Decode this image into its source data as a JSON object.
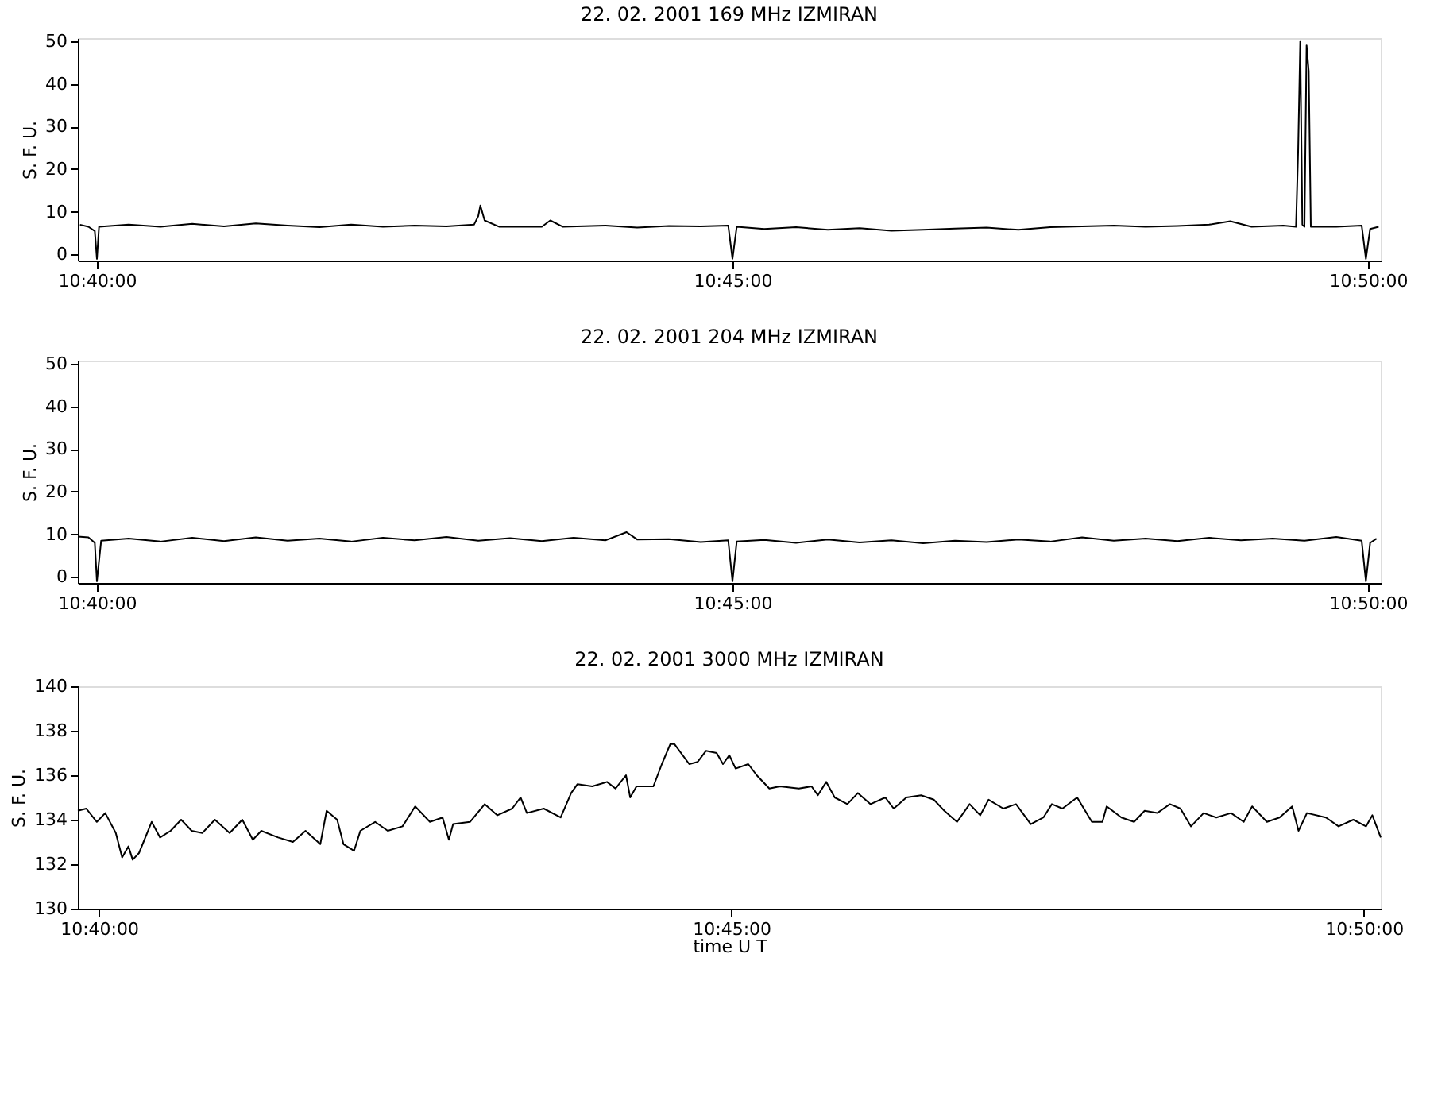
{
  "chart_data": [
    {
      "type": "line",
      "title": "22.  02.  2001    169  MHz    IZMIRAN",
      "ylabel": "S.  F.  U.",
      "grid": false,
      "xlim": [
        "2001-02-22T10:39:51",
        "2001-02-22T10:50:06"
      ],
      "xticks": [
        {
          "value": "2001-02-22T10:40:00",
          "label": "10:40:00"
        },
        {
          "value": "2001-02-22T10:45:00",
          "label": "10:45:00"
        },
        {
          "value": "2001-02-22T10:50:00",
          "label": "10:50:00"
        }
      ],
      "ylim": [
        -1.4,
        50.7
      ],
      "yticks": [
        0,
        10,
        20,
        30,
        40,
        50
      ],
      "x": [
        "2001-02-22T10:39:52",
        "2001-02-22T10:39:56",
        "2001-02-22T10:39:59",
        "2001-02-22T10:40:00",
        "2001-02-22T10:40:01",
        "2001-02-22T10:40:15",
        "2001-02-22T10:40:30",
        "2001-02-22T10:40:45",
        "2001-02-22T10:41:00",
        "2001-02-22T10:41:15",
        "2001-02-22T10:41:30",
        "2001-02-22T10:41:45",
        "2001-02-22T10:42:00",
        "2001-02-22T10:42:15",
        "2001-02-22T10:42:30",
        "2001-02-22T10:42:45",
        "2001-02-22T10:42:58",
        "2001-02-22T10:43:00",
        "2001-02-22T10:43:01",
        "2001-02-22T10:43:03",
        "2001-02-22T10:43:10",
        "2001-02-22T10:43:30",
        "2001-02-22T10:43:34",
        "2001-02-22T10:43:40",
        "2001-02-22T10:44:00",
        "2001-02-22T10:44:15",
        "2001-02-22T10:44:30",
        "2001-02-22T10:44:45",
        "2001-02-22T10:44:58",
        "2001-02-22T10:45:00",
        "2001-02-22T10:45:02",
        "2001-02-22T10:45:15",
        "2001-02-22T10:45:30",
        "2001-02-22T10:45:45",
        "2001-02-22T10:46:00",
        "2001-02-22T10:46:15",
        "2001-02-22T10:46:30",
        "2001-02-22T10:46:45",
        "2001-02-22T10:47:00",
        "2001-02-22T10:47:15",
        "2001-02-22T10:47:30",
        "2001-02-22T10:47:45",
        "2001-02-22T10:48:00",
        "2001-02-22T10:48:15",
        "2001-02-22T10:48:30",
        "2001-02-22T10:48:45",
        "2001-02-22T10:48:55",
        "2001-02-22T10:49:05",
        "2001-02-22T10:49:20",
        "2001-02-22T10:49:26",
        "2001-02-22T10:49:27",
        "2001-02-22T10:49:28",
        "2001-02-22T10:49:29",
        "2001-02-22T10:49:30",
        "2001-02-22T10:49:31",
        "2001-02-22T10:49:32",
        "2001-02-22T10:49:33",
        "2001-02-22T10:49:45",
        "2001-02-22T10:49:57",
        "2001-02-22T10:49:59",
        "2001-02-22T10:50:01",
        "2001-02-22T10:50:05"
      ],
      "series": [
        {
          "color": "#000000",
          "values": [
            7,
            6.5,
            5.5,
            -1,
            6.5,
            7,
            6.5,
            7.2,
            6.6,
            7.3,
            6.8,
            6.4,
            7,
            6.5,
            6.8,
            6.6,
            7,
            9,
            11.5,
            8,
            6.5,
            6.5,
            8,
            6.5,
            6.8,
            6.3,
            6.7,
            6.6,
            6.8,
            -1,
            6.5,
            6,
            6.4,
            5.8,
            6.2,
            5.6,
            5.8,
            6.1,
            6.3,
            5.8,
            6.4,
            6.6,
            6.8,
            6.5,
            6.7,
            7,
            7.8,
            6.5,
            6.8,
            6.5,
            24,
            50,
            7,
            6.5,
            49,
            43,
            6.5,
            6.5,
            6.8,
            -1,
            6,
            6.5
          ]
        }
      ]
    },
    {
      "type": "line",
      "title": "22.  02.  2001    204  MHz    IZMIRAN",
      "ylabel": "S.  F.  U.",
      "grid": false,
      "xlim": [
        "2001-02-22T10:39:51",
        "2001-02-22T10:50:06"
      ],
      "xticks": [
        {
          "value": "2001-02-22T10:40:00",
          "label": "10:40:00"
        },
        {
          "value": "2001-02-22T10:45:00",
          "label": "10:45:00"
        },
        {
          "value": "2001-02-22T10:50:00",
          "label": "10:50:00"
        }
      ],
      "ylim": [
        -1.4,
        50.7
      ],
      "yticks": [
        0,
        10,
        20,
        30,
        40,
        50
      ],
      "x": [
        "2001-02-22T10:39:51",
        "2001-02-22T10:39:56",
        "2001-02-22T10:39:59",
        "2001-02-22T10:40:00",
        "2001-02-22T10:40:02",
        "2001-02-22T10:40:15",
        "2001-02-22T10:40:30",
        "2001-02-22T10:40:45",
        "2001-02-22T10:41:00",
        "2001-02-22T10:41:15",
        "2001-02-22T10:41:30",
        "2001-02-22T10:41:45",
        "2001-02-22T10:42:00",
        "2001-02-22T10:42:15",
        "2001-02-22T10:42:30",
        "2001-02-22T10:42:45",
        "2001-02-22T10:43:00",
        "2001-02-22T10:43:15",
        "2001-02-22T10:43:30",
        "2001-02-22T10:43:45",
        "2001-02-22T10:44:00",
        "2001-02-22T10:44:10",
        "2001-02-22T10:44:15",
        "2001-02-22T10:44:30",
        "2001-02-22T10:44:45",
        "2001-02-22T10:44:58",
        "2001-02-22T10:45:00",
        "2001-02-22T10:45:02",
        "2001-02-22T10:45:15",
        "2001-02-22T10:45:30",
        "2001-02-22T10:45:45",
        "2001-02-22T10:46:00",
        "2001-02-22T10:46:15",
        "2001-02-22T10:46:30",
        "2001-02-22T10:46:45",
        "2001-02-22T10:47:00",
        "2001-02-22T10:47:15",
        "2001-02-22T10:47:30",
        "2001-02-22T10:47:45",
        "2001-02-22T10:48:00",
        "2001-02-22T10:48:15",
        "2001-02-22T10:48:30",
        "2001-02-22T10:48:45",
        "2001-02-22T10:49:00",
        "2001-02-22T10:49:15",
        "2001-02-22T10:49:30",
        "2001-02-22T10:49:45",
        "2001-02-22T10:49:57",
        "2001-02-22T10:49:59",
        "2001-02-22T10:50:01",
        "2001-02-22T10:50:04"
      ],
      "series": [
        {
          "color": "#000000",
          "values": [
            9.5,
            9.3,
            8,
            -1,
            8.5,
            9,
            8.3,
            9.2,
            8.4,
            9.3,
            8.5,
            9,
            8.3,
            9.2,
            8.6,
            9.4,
            8.5,
            9.1,
            8.4,
            9.2,
            8.6,
            10.5,
            8.8,
            8.9,
            8.2,
            8.6,
            -1,
            8.3,
            8.7,
            8,
            8.8,
            8.1,
            8.6,
            7.9,
            8.5,
            8.2,
            8.8,
            8.3,
            9.3,
            8.5,
            9,
            8.4,
            9.2,
            8.6,
            9,
            8.5,
            9.4,
            8.5,
            -1,
            8,
            9
          ]
        }
      ]
    },
    {
      "type": "line",
      "title": "22.  02.  2001    3000  MHz    IZMIRAN",
      "ylabel": "S.  F.  U.",
      "xlabel": "time   U T",
      "grid": false,
      "xlim": [
        "2001-02-22T10:39:50",
        "2001-02-22T10:50:08"
      ],
      "xticks": [
        {
          "value": "2001-02-22T10:40:00",
          "label": "10:40:00"
        },
        {
          "value": "2001-02-22T10:45:00",
          "label": "10:45:00"
        },
        {
          "value": "2001-02-22T10:50:00",
          "label": "10:50:00"
        }
      ],
      "ylim": [
        130,
        140
      ],
      "yticks": [
        130,
        132,
        134,
        136,
        138,
        140
      ],
      "x": [
        "2001-02-22T10:39:50",
        "2001-02-22T10:39:54",
        "2001-02-22T10:39:59",
        "2001-02-22T10:40:03",
        "2001-02-22T10:40:08",
        "2001-02-22T10:40:11",
        "2001-02-22T10:40:14",
        "2001-02-22T10:40:16",
        "2001-02-22T10:40:19",
        "2001-02-22T10:40:25",
        "2001-02-22T10:40:29",
        "2001-02-22T10:40:34",
        "2001-02-22T10:40:39",
        "2001-02-22T10:40:44",
        "2001-02-22T10:40:49",
        "2001-02-22T10:40:55",
        "2001-02-22T10:41:02",
        "2001-02-22T10:41:08",
        "2001-02-22T10:41:13",
        "2001-02-22T10:41:17",
        "2001-02-22T10:41:25",
        "2001-02-22T10:41:32",
        "2001-02-22T10:41:38",
        "2001-02-22T10:41:45",
        "2001-02-22T10:41:48",
        "2001-02-22T10:41:53",
        "2001-02-22T10:41:56",
        "2001-02-22T10:42:01",
        "2001-02-22T10:42:04",
        "2001-02-22T10:42:11",
        "2001-02-22T10:42:17",
        "2001-02-22T10:42:24",
        "2001-02-22T10:42:30",
        "2001-02-22T10:42:37",
        "2001-02-22T10:42:43",
        "2001-02-22T10:42:46",
        "2001-02-22T10:42:48",
        "2001-02-22T10:42:56",
        "2001-02-22T10:43:03",
        "2001-02-22T10:43:09",
        "2001-02-22T10:43:16",
        "2001-02-22T10:43:20",
        "2001-02-22T10:43:23",
        "2001-02-22T10:43:31",
        "2001-02-22T10:43:39",
        "2001-02-22T10:43:44",
        "2001-02-22T10:43:47",
        "2001-02-22T10:43:54",
        "2001-02-22T10:44:01",
        "2001-02-22T10:44:05",
        "2001-02-22T10:44:10",
        "2001-02-22T10:44:12",
        "2001-02-22T10:44:15",
        "2001-02-22T10:44:23",
        "2001-02-22T10:44:27",
        "2001-02-22T10:44:31",
        "2001-02-22T10:44:33",
        "2001-02-22T10:44:40",
        "2001-02-22T10:44:44",
        "2001-02-22T10:44:48",
        "2001-02-22T10:44:53",
        "2001-02-22T10:44:56",
        "2001-02-22T10:44:59",
        "2001-02-22T10:45:02",
        "2001-02-22T10:45:08",
        "2001-02-22T10:45:12",
        "2001-02-22T10:45:18",
        "2001-02-22T10:45:23",
        "2001-02-22T10:45:32",
        "2001-02-22T10:45:38",
        "2001-02-22T10:45:41",
        "2001-02-22T10:45:45",
        "2001-02-22T10:45:49",
        "2001-02-22T10:45:55",
        "2001-02-22T10:46:00",
        "2001-02-22T10:46:06",
        "2001-02-22T10:46:13",
        "2001-02-22T10:46:17",
        "2001-02-22T10:46:23",
        "2001-02-22T10:46:30",
        "2001-02-22T10:46:36",
        "2001-02-22T10:46:41",
        "2001-02-22T10:46:47",
        "2001-02-22T10:46:53",
        "2001-02-22T10:46:58",
        "2001-02-22T10:47:02",
        "2001-02-22T10:47:09",
        "2001-02-22T10:47:15",
        "2001-02-22T10:47:22",
        "2001-02-22T10:47:28",
        "2001-02-22T10:47:32",
        "2001-02-22T10:47:37",
        "2001-02-22T10:47:44",
        "2001-02-22T10:47:51",
        "2001-02-22T10:47:56",
        "2001-02-22T10:47:58",
        "2001-02-22T10:48:05",
        "2001-02-22T10:48:11",
        "2001-02-22T10:48:16",
        "2001-02-22T10:48:22",
        "2001-02-22T10:48:28",
        "2001-02-22T10:48:33",
        "2001-02-22T10:48:38",
        "2001-02-22T10:48:44",
        "2001-02-22T10:48:50",
        "2001-02-22T10:48:57",
        "2001-02-22T10:49:03",
        "2001-02-22T10:49:07",
        "2001-02-22T10:49:14",
        "2001-02-22T10:49:20",
        "2001-02-22T10:49:26",
        "2001-02-22T10:49:29",
        "2001-02-22T10:49:33",
        "2001-02-22T10:49:42",
        "2001-02-22T10:49:48",
        "2001-02-22T10:49:55",
        "2001-02-22T10:50:01",
        "2001-02-22T10:50:04",
        "2001-02-22T10:50:08"
      ],
      "series": [
        {
          "color": "#000000",
          "values": [
            134.4,
            134.5,
            133.9,
            134.3,
            133.4,
            132.3,
            132.8,
            132.2,
            132.5,
            133.9,
            133.2,
            133.5,
            134,
            133.5,
            133.4,
            134,
            133.4,
            134,
            133.1,
            133.5,
            133.2,
            133,
            133.5,
            132.9,
            134.4,
            134,
            132.9,
            132.6,
            133.5,
            133.9,
            133.5,
            133.7,
            134.6,
            133.9,
            134.1,
            133.1,
            133.8,
            133.9,
            134.7,
            134.2,
            134.5,
            135,
            134.3,
            134.5,
            134.1,
            135.2,
            135.6,
            135.5,
            135.7,
            135.4,
            136,
            135,
            135.5,
            135.5,
            136.5,
            137.4,
            137.4,
            136.5,
            136.6,
            137.1,
            137,
            136.5,
            136.9,
            136.3,
            136.5,
            136,
            135.4,
            135.5,
            135.4,
            135.5,
            135.1,
            135.7,
            135,
            134.7,
            135.2,
            134.7,
            135,
            134.5,
            135,
            135.1,
            134.9,
            134.4,
            133.9,
            134.7,
            134.2,
            134.9,
            134.5,
            134.7,
            133.8,
            134.1,
            134.7,
            134.5,
            135,
            133.9,
            133.9,
            134.6,
            134.1,
            133.9,
            134.4,
            134.3,
            134.7,
            134.5,
            133.7,
            134.3,
            134.1,
            134.3,
            133.9,
            134.6,
            133.9,
            134.1,
            134.6,
            133.5,
            134.3,
            134.1,
            133.7,
            134,
            133.7,
            134.2,
            133.2
          ]
        }
      ]
    }
  ]
}
